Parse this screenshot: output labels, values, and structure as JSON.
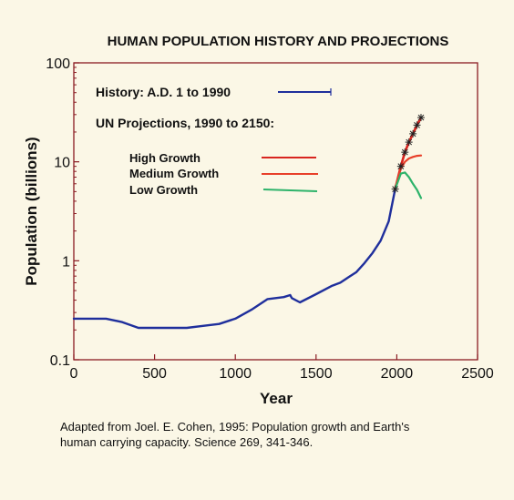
{
  "chart_data": {
    "type": "line",
    "title": "HUMAN POPULATION HISTORY AND PROJECTIONS",
    "xlabel": "Year",
    "ylabel": "Population (billions)",
    "xlim": [
      0,
      2500
    ],
    "ylim": [
      0.1,
      100
    ],
    "yscale": "log",
    "xticks": [
      "0",
      "500",
      "1000",
      "1500",
      "2000",
      "2500"
    ],
    "yticks": [
      "0.1",
      "1",
      "10",
      "100"
    ],
    "grid": false,
    "legend_headers": {
      "history": "History: A.D. 1 to 1990",
      "projections": "UN Projections, 1990 to 2150:"
    },
    "series": [
      {
        "name": "History: A.D. 1 to 1990",
        "color": "#1f2f9c",
        "x": [
          0,
          100,
          200,
          300,
          400,
          500,
          600,
          700,
          800,
          900,
          1000,
          1100,
          1200,
          1250,
          1300,
          1340,
          1350,
          1400,
          1500,
          1600,
          1650,
          1700,
          1750,
          1800,
          1850,
          1900,
          1950,
          1990
        ],
        "y": [
          0.26,
          0.26,
          0.26,
          0.24,
          0.21,
          0.21,
          0.21,
          0.21,
          0.22,
          0.23,
          0.26,
          0.32,
          0.41,
          0.42,
          0.43,
          0.45,
          0.42,
          0.38,
          0.46,
          0.56,
          0.6,
          0.68,
          0.77,
          0.95,
          1.2,
          1.6,
          2.5,
          5.3
        ]
      },
      {
        "name": "High Growth",
        "color": "#d8251f",
        "x": [
          1990,
          2025,
          2050,
          2075,
          2100,
          2125,
          2150
        ],
        "y": [
          5.3,
          9.0,
          12.5,
          15.8,
          19.2,
          23.5,
          28.0
        ]
      },
      {
        "name": "Medium Growth",
        "color": "#e8402a",
        "x": [
          1990,
          2025,
          2050,
          2075,
          2100,
          2125,
          2150
        ],
        "y": [
          5.3,
          8.5,
          10.0,
          10.8,
          11.2,
          11.5,
          11.6
        ]
      },
      {
        "name": "Low Growth",
        "color": "#2db36a",
        "x": [
          1990,
          2025,
          2050,
          2075,
          2100,
          2125,
          2150
        ],
        "y": [
          5.3,
          7.6,
          7.8,
          7.0,
          6.0,
          5.2,
          4.3
        ]
      }
    ]
  },
  "caption": {
    "line1": "Adapted from Joel. E. Cohen, 1995:  Population growth and Earth's",
    "line2": "human carrying capacity.  Science 269, 341-346."
  }
}
